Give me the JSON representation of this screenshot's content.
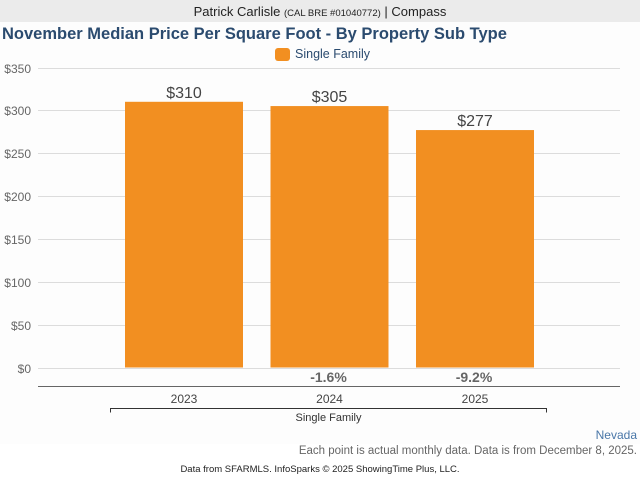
{
  "header": {
    "agent_name": "Patrick Carlisle",
    "license": "(CAL BRE #01040772)",
    "separator": "|",
    "brokerage": "Compass"
  },
  "region_label": "Nevada",
  "note": "Each point is actual monthly data. Data is from December 8, 2025.",
  "footer": "Data from SFARMLS. InfoSparks © 2025 ShowingTime Plus, LLC.",
  "colors": {
    "bar": "#f28f21",
    "title": "#2b4b6f",
    "grid": "#dcdcdc",
    "axis": "#555555"
  },
  "chart_data": {
    "type": "bar",
    "title": "November Median Price Per Square Foot - By Property Sub Type",
    "legend": [
      "Single Family"
    ],
    "legend_position": "top-center",
    "categories": [
      "2023",
      "2024",
      "2025"
    ],
    "group_label": "Single Family",
    "series": [
      {
        "name": "Single Family",
        "values": [
          310,
          305,
          277
        ],
        "value_labels": [
          "$310",
          "$305",
          "$277"
        ],
        "change_labels": [
          "",
          "-1.6%",
          "-9.2%"
        ]
      }
    ],
    "ylim": [
      0,
      350
    ],
    "yticks": [
      0,
      50,
      100,
      150,
      200,
      250,
      300,
      350
    ],
    "ytick_labels": [
      "$0",
      "$50",
      "$100",
      "$150",
      "$200",
      "$250",
      "$300",
      "$350"
    ],
    "xlabel": "",
    "ylabel": "",
    "grid": true
  }
}
